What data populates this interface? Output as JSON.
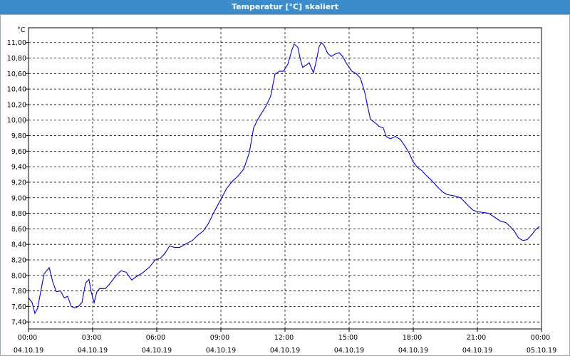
{
  "window_title": "Temperatur [°C] skaliert",
  "chart_data": {
    "type": "line",
    "y_unit": "°C",
    "xlim": [
      0,
      24
    ],
    "ylim": [
      7.31,
      11.19
    ],
    "grid": true,
    "xticks": [
      {
        "value": 0,
        "label": "00:00 04.10.19"
      },
      {
        "value": 3,
        "label": "03:00 04.10.19"
      },
      {
        "value": 6,
        "label": "06:00 04.10.19"
      },
      {
        "value": 9,
        "label": "09:00 04.10.19"
      },
      {
        "value": 12,
        "label": "12:00 04.10.19"
      },
      {
        "value": 15,
        "label": "15:00 04.10.19"
      },
      {
        "value": 18,
        "label": "18:00 04.10.19"
      },
      {
        "value": 21,
        "label": "21:00 04.10.19"
      },
      {
        "value": 24,
        "label": "00:00 05.10.19"
      }
    ],
    "yticks": [
      {
        "value": 7.4,
        "label": "7,40"
      },
      {
        "value": 7.6,
        "label": "7,60"
      },
      {
        "value": 7.8,
        "label": "7,80"
      },
      {
        "value": 8.0,
        "label": "8,00"
      },
      {
        "value": 8.2,
        "label": "8,20"
      },
      {
        "value": 8.4,
        "label": "8,40"
      },
      {
        "value": 8.6,
        "label": "8,60"
      },
      {
        "value": 8.8,
        "label": "8,80"
      },
      {
        "value": 9.0,
        "label": "9,00"
      },
      {
        "value": 9.2,
        "label": "9,20"
      },
      {
        "value": 9.4,
        "label": "9,40"
      },
      {
        "value": 9.6,
        "label": "9,60"
      },
      {
        "value": 9.8,
        "label": "9,80"
      },
      {
        "value": 10.0,
        "label": "10,00"
      },
      {
        "value": 10.2,
        "label": "10,20"
      },
      {
        "value": 10.4,
        "label": "10,40"
      },
      {
        "value": 10.6,
        "label": "10,60"
      },
      {
        "value": 10.8,
        "label": "10,80"
      },
      {
        "value": 11.0,
        "label": "11,00"
      }
    ],
    "series": [
      {
        "color": "#0000cc",
        "x": [
          0,
          0.17,
          0.3,
          0.43,
          0.57,
          0.73,
          0.97,
          1.13,
          1.3,
          1.5,
          1.67,
          1.83,
          2.0,
          2.17,
          2.33,
          2.5,
          2.67,
          2.83,
          2.93,
          3.07,
          3.2,
          3.33,
          3.6,
          3.83,
          4.07,
          4.33,
          4.57,
          4.83,
          5.07,
          5.33,
          5.67,
          5.93,
          6.17,
          6.4,
          6.6,
          6.83,
          7.07,
          7.33,
          7.67,
          7.93,
          8.17,
          8.4,
          8.67,
          9.0,
          9.27,
          9.53,
          9.8,
          10.07,
          10.33,
          10.53,
          10.73,
          10.93,
          11.13,
          11.33,
          11.53,
          11.73,
          11.93,
          12.13,
          12.33,
          12.43,
          12.6,
          12.73,
          12.83,
          13.0,
          13.13,
          13.33,
          13.47,
          13.6,
          13.7,
          13.83,
          14.0,
          14.17,
          14.33,
          14.53,
          14.7,
          14.9,
          15.13,
          15.33,
          15.53,
          15.73,
          15.87,
          16.0,
          16.2,
          16.4,
          16.6,
          16.73,
          16.93,
          17.17,
          17.4,
          17.6,
          17.8,
          18.0,
          18.2,
          18.4,
          18.6,
          18.8,
          19.0,
          19.2,
          19.4,
          19.6,
          19.8,
          20.0,
          20.2,
          20.4,
          20.6,
          20.8,
          21.0,
          21.27,
          21.53,
          21.8,
          22.07,
          22.33,
          22.53,
          22.73,
          22.93,
          23.13,
          23.33,
          23.53,
          23.73,
          23.9
        ],
        "values": [
          7.71,
          7.65,
          7.51,
          7.58,
          7.79,
          8.02,
          8.1,
          7.92,
          7.79,
          7.8,
          7.71,
          7.73,
          7.6,
          7.58,
          7.6,
          7.65,
          7.9,
          7.95,
          7.79,
          7.65,
          7.79,
          7.83,
          7.83,
          7.9,
          7.99,
          8.06,
          8.04,
          7.94,
          7.99,
          8.03,
          8.11,
          8.2,
          8.22,
          8.29,
          8.38,
          8.36,
          8.36,
          8.4,
          8.45,
          8.52,
          8.57,
          8.66,
          8.81,
          8.98,
          9.12,
          9.21,
          9.28,
          9.37,
          9.58,
          9.9,
          10.01,
          10.1,
          10.19,
          10.31,
          10.59,
          10.63,
          10.63,
          10.72,
          10.91,
          10.98,
          10.94,
          10.77,
          10.68,
          10.71,
          10.74,
          10.61,
          10.77,
          10.95,
          11.0,
          10.96,
          10.86,
          10.82,
          10.85,
          10.87,
          10.82,
          10.72,
          10.63,
          10.6,
          10.54,
          10.36,
          10.17,
          10.01,
          9.97,
          9.92,
          9.9,
          9.79,
          9.76,
          9.79,
          9.75,
          9.67,
          9.58,
          9.46,
          9.39,
          9.35,
          9.29,
          9.24,
          9.18,
          9.12,
          9.07,
          9.04,
          9.03,
          9.02,
          9.0,
          8.95,
          8.89,
          8.84,
          8.82,
          8.81,
          8.8,
          8.75,
          8.7,
          8.68,
          8.63,
          8.57,
          8.48,
          8.45,
          8.46,
          8.52,
          8.59,
          8.63
        ]
      }
    ]
  }
}
